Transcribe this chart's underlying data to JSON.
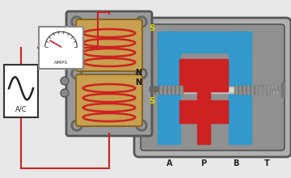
{
  "bg_color": "#e8e8e8",
  "sol_gray": "#9a9a9a",
  "sol_light": "#b5b5b5",
  "sol_dark": "#6a6a6a",
  "coil_color": "#c8a050",
  "coil_outline": "#cc2222",
  "blue_color": "#3399cc",
  "red_color": "#cc2222",
  "wire_color": "#cc2222",
  "shaft_color": "#aaaaaa",
  "spring_color": "#888888",
  "ac_box_color": "#ffffff",
  "meter_color": "#ffffff",
  "label_AC": "A/C",
  "label_AMPS": "AMPS",
  "port_labels": [
    "A",
    "P",
    "B",
    "T"
  ],
  "figsize": [
    3.6,
    2.2
  ],
  "dpi": 100
}
